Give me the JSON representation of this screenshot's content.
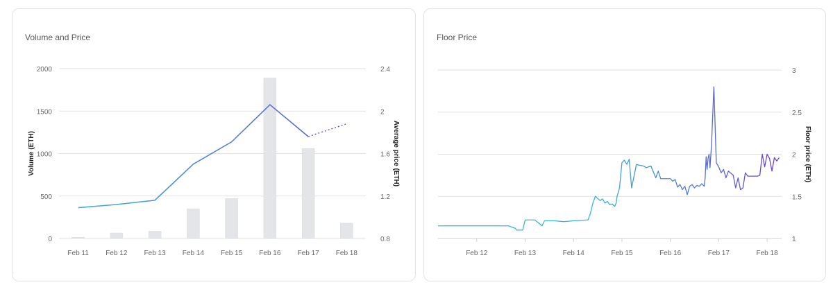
{
  "colors": {
    "bar": "#e3e5e8",
    "bar_stroke": "#d8dbdf",
    "grid": "#e2e2e2",
    "line_start": "#3fb8d6",
    "line_end": "#6a4fd1",
    "floor_start": "#38b6d3",
    "floor_end": "#6a3fcf"
  },
  "chart_data": [
    {
      "type": "bar",
      "title": "Volume and Price",
      "categories": [
        "Feb 11",
        "Feb 12",
        "Feb 13",
        "Feb 14",
        "Feb 15",
        "Feb 16",
        "Feb 17",
        "Feb 18"
      ],
      "xlabel": "",
      "ylabel": "Volume (ETH)",
      "y2label": "Average price (ETH)",
      "ylim": [
        0,
        2000
      ],
      "y2lim": [
        0.8,
        2.4
      ],
      "yticks": [
        "0",
        "500",
        "1000",
        "1500",
        "2000"
      ],
      "y2ticks": [
        "0.8",
        "1.2",
        "1.6",
        "2",
        "2.4"
      ],
      "grid": true,
      "series": [
        {
          "type": "bar",
          "axis": "left",
          "values": [
            15,
            65,
            85,
            350,
            470,
            1890,
            1060,
            180
          ]
        },
        {
          "type": "line",
          "axis": "right",
          "values": [
            1.09,
            1.12,
            1.16,
            1.5,
            1.71,
            2.06,
            1.76,
            1.88
          ],
          "projected_from_index": 6
        }
      ]
    },
    {
      "type": "line",
      "title": "Floor Price",
      "x_ticks": [
        "Feb 12",
        "Feb 13",
        "Feb 14",
        "Feb 15",
        "Feb 16",
        "Feb 17",
        "Feb 18"
      ],
      "x_tick_days": [
        12,
        13,
        14,
        15,
        16,
        17,
        18
      ],
      "xlim": [
        11.2,
        18.3
      ],
      "ylabel": "Floor price (ETH)",
      "ylim": [
        1,
        3
      ],
      "yticks": [
        "1",
        "1.5",
        "2",
        "2.5",
        "3"
      ],
      "grid": true,
      "series": [
        {
          "x": [
            11.2,
            12.5,
            12.65,
            12.8,
            12.82,
            12.95,
            13.0,
            13.2,
            13.35,
            13.4,
            13.6,
            13.8,
            14.0,
            14.3,
            14.35,
            14.4,
            14.45,
            14.55,
            14.6,
            14.65,
            14.7,
            14.75,
            14.8,
            14.85,
            14.88,
            14.9,
            14.95,
            15.0,
            15.05,
            15.1,
            15.15,
            15.2,
            15.3,
            15.35,
            15.45,
            15.5,
            15.6,
            15.7,
            15.75,
            15.8,
            15.9,
            16.0,
            16.05,
            16.1,
            16.15,
            16.2,
            16.25,
            16.3,
            16.35,
            16.4,
            16.45,
            16.5,
            16.55,
            16.6,
            16.65,
            16.7,
            16.72,
            16.74,
            16.76,
            16.78,
            16.8,
            16.82,
            16.85,
            16.9,
            16.95,
            17.0,
            17.05,
            17.1,
            17.15,
            17.2,
            17.3,
            17.35,
            17.4,
            17.45,
            17.5,
            17.55,
            17.6,
            17.7,
            17.8,
            17.85,
            17.9,
            17.95,
            18.0,
            18.05,
            18.1,
            18.15,
            18.2,
            18.25
          ],
          "y": [
            1.15,
            1.15,
            1.15,
            1.12,
            1.1,
            1.1,
            1.22,
            1.22,
            1.15,
            1.21,
            1.21,
            1.2,
            1.21,
            1.22,
            1.3,
            1.42,
            1.5,
            1.45,
            1.47,
            1.42,
            1.44,
            1.4,
            1.41,
            1.38,
            1.42,
            1.5,
            1.6,
            1.9,
            1.93,
            1.88,
            1.94,
            1.6,
            1.88,
            1.87,
            1.86,
            1.84,
            1.86,
            1.72,
            1.8,
            1.71,
            1.71,
            1.71,
            1.68,
            1.7,
            1.61,
            1.64,
            1.58,
            1.62,
            1.52,
            1.62,
            1.64,
            1.6,
            1.63,
            1.62,
            1.65,
            1.62,
            1.72,
            1.97,
            1.82,
            1.95,
            2.0,
            1.84,
            2.1,
            2.8,
            1.9,
            1.85,
            1.78,
            1.82,
            1.72,
            1.8,
            1.75,
            1.6,
            1.72,
            1.58,
            1.6,
            1.78,
            1.74,
            1.74,
            1.74,
            1.75,
            2.0,
            1.85,
            2.0,
            1.95,
            1.8,
            1.96,
            1.92,
            1.96
          ]
        }
      ]
    }
  ]
}
